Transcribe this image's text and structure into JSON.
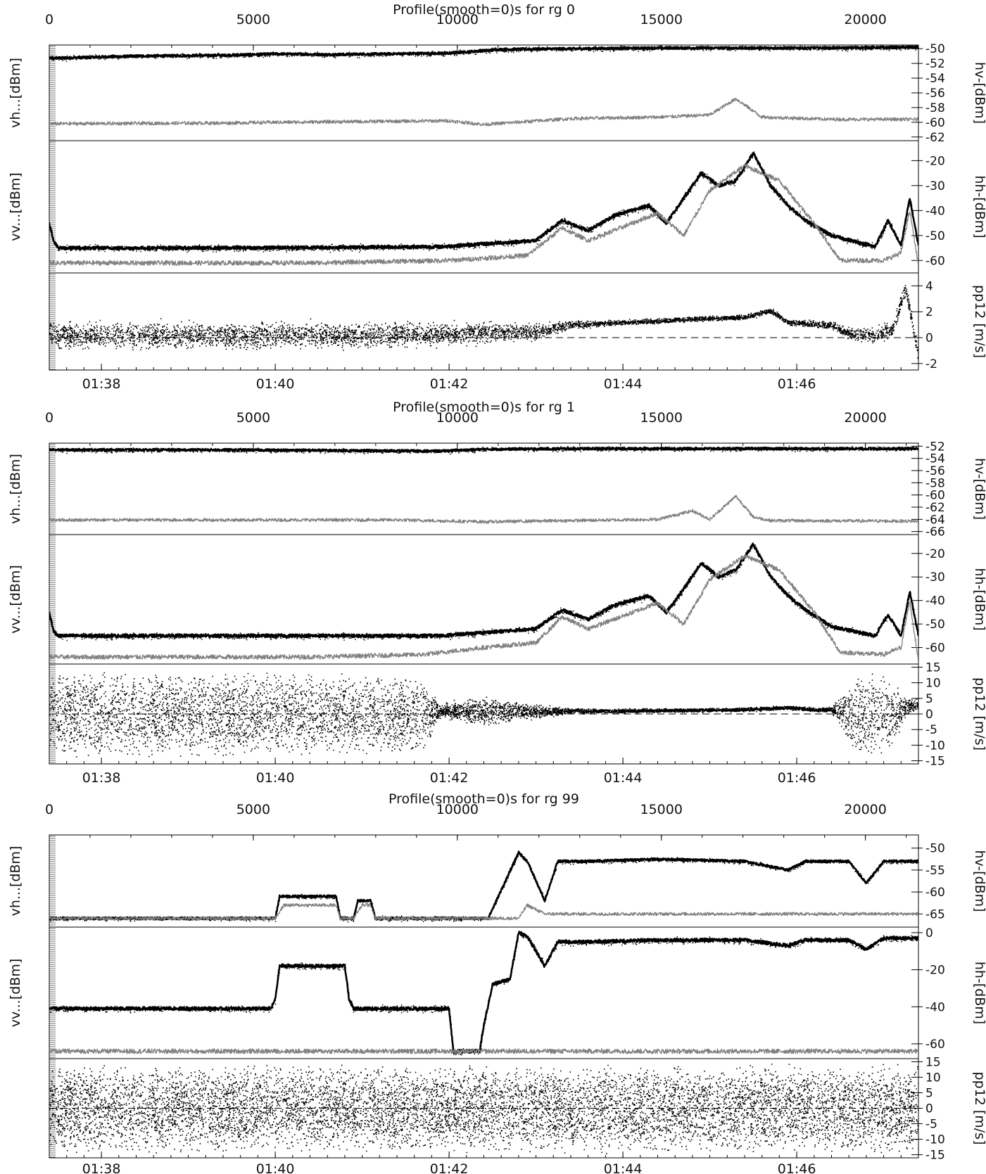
{
  "chart_data": [
    {
      "type": "line",
      "title": "Profile(smooth=0)s for rg 0",
      "top_axis": {
        "range": [
          0,
          21300
        ],
        "ticks": [
          0,
          5000,
          10000,
          15000,
          20000
        ],
        "labels": [
          "0",
          "5000",
          "10000",
          "15000",
          "20000"
        ]
      },
      "bottom_axis": {
        "ticks": [
          0.6,
          2.6,
          4.6,
          6.6,
          8.6
        ],
        "labels": [
          "01:38",
          "01:40",
          "01:42",
          "01:44",
          "01:46"
        ],
        "xlim": [
          0,
          10.0
        ]
      },
      "panels": [
        {
          "left_label": "vh...[dBm]",
          "right_label": "hv-[dBm]",
          "ylim": [
            -62.5,
            -49.5
          ],
          "ticks": [
            -50,
            -52,
            -54,
            -56,
            -58,
            -60,
            -62
          ],
          "tick_labels": [
            "-50",
            "-52",
            "-54",
            "-56",
            "-58",
            "-60",
            "-62"
          ],
          "series": [
            {
              "color": "#000000",
              "style": "band",
              "x": [
                0,
                1,
                2,
                2.6,
                3.2,
                4.6,
                5.2,
                6,
                7,
                8,
                9,
                10
              ],
              "values": [
                -51.3,
                -51.0,
                -50.9,
                -50.7,
                -50.8,
                -50.6,
                -50.1,
                -50.0,
                -49.9,
                -49.9,
                -49.9,
                -49.8
              ]
            },
            {
              "color": "#808080",
              "style": "line",
              "x": [
                0,
                2,
                2.6,
                4.6,
                5.0,
                6,
                7,
                7.6,
                7.9,
                8.2,
                9,
                10
              ],
              "values": [
                -60.2,
                -60.1,
                -60.0,
                -59.8,
                -60.3,
                -59.5,
                -59.3,
                -59.0,
                -56.8,
                -59.3,
                -59.6,
                -59.6
              ]
            }
          ]
        },
        {
          "left_label": "vv...[dBm]",
          "right_label": "hh-[dBm]",
          "ylim": [
            -65,
            -12
          ],
          "ticks": [
            -20,
            -30,
            -40,
            -50,
            -60
          ],
          "tick_labels": [
            "-20",
            "-30",
            "-40",
            "-50",
            "-60"
          ],
          "series": [
            {
              "color": "#000000",
              "style": "band",
              "x": [
                0,
                0.05,
                0.1,
                2,
                4.5,
                5.6,
                5.9,
                6.2,
                6.5,
                6.9,
                7.1,
                7.3,
                7.5,
                7.7,
                7.9,
                8.1,
                8.3,
                8.5,
                8.7,
                9.0,
                9.5,
                9.65,
                9.8,
                9.9,
                10
              ],
              "values": [
                -45,
                -52,
                -55,
                -55,
                -54.5,
                -52,
                -44,
                -48,
                -42,
                -38,
                -45,
                -35,
                -25,
                -30,
                -28,
                -17,
                -30,
                -38,
                -44,
                -50,
                -54.5,
                -44,
                -54,
                -35,
                -54
              ]
            },
            {
              "color": "#808080",
              "style": "line",
              "x": [
                0,
                3,
                4.6,
                5.5,
                5.9,
                6.2,
                6.5,
                7.0,
                7.3,
                7.6,
                8.0,
                8.4,
                8.8,
                9.1,
                9.6,
                9.8,
                9.9,
                10
              ],
              "values": [
                -61,
                -61,
                -60,
                -58,
                -47,
                -52,
                -48,
                -41,
                -50,
                -32,
                -22,
                -28,
                -45,
                -60,
                -60,
                -57,
                -40,
                -62
              ]
            }
          ]
        },
        {
          "left_label": "",
          "right_label": "pp12 [m/s]",
          "ylim": [
            -2.5,
            5
          ],
          "ticks": [
            4,
            2,
            0,
            -2
          ],
          "tick_labels": [
            "4",
            "2",
            "0",
            "-2"
          ],
          "dashed_zero": true,
          "series": [
            {
              "color": "#000000",
              "style": "scatter",
              "x": [
                0,
                2,
                4.5,
                5.6,
                6.0,
                6.6,
                7.0,
                7.5,
                8.0,
                8.3,
                8.5,
                9.0,
                9.2,
                9.5,
                9.7,
                9.85,
                10
              ],
              "values": [
                0.2,
                0.2,
                0.3,
                0.5,
                1.0,
                1.2,
                1.3,
                1.5,
                1.6,
                2.1,
                1.2,
                1.0,
                0.3,
                0.2,
                0.7,
                3.8,
                -1.5
              ],
              "spread": [
                1.0,
                1.0,
                0.9,
                0.6,
                0.3,
                0.2,
                0.2,
                0.2,
                0.2,
                0.2,
                0.2,
                0.3,
                0.5,
                0.6,
                0.6,
                0.5,
                0.6
              ]
            }
          ]
        }
      ]
    },
    {
      "type": "line",
      "title": "Profile(smooth=0)s for rg 1",
      "top_axis": {
        "range": [
          0,
          21300
        ],
        "ticks": [
          0,
          5000,
          10000,
          15000,
          20000
        ],
        "labels": [
          "0",
          "5000",
          "10000",
          "15000",
          "20000"
        ]
      },
      "bottom_axis": {
        "ticks": [
          0.6,
          2.6,
          4.6,
          6.6,
          8.6
        ],
        "labels": [
          "01:38",
          "01:40",
          "01:42",
          "01:44",
          "01:46"
        ],
        "xlim": [
          0,
          10.0
        ]
      },
      "panels": [
        {
          "left_label": "vh...[dBm]",
          "right_label": "hv-[dBm]",
          "ylim": [
            -66.5,
            -51.5
          ],
          "ticks": [
            -52,
            -54,
            -56,
            -58,
            -60,
            -62,
            -64,
            -66
          ],
          "tick_labels": [
            "-52",
            "-54",
            "-56",
            "-58",
            "-60",
            "-62",
            "-64",
            "-66"
          ],
          "series": [
            {
              "color": "#000000",
              "style": "band",
              "x": [
                0,
                2,
                4.5,
                5.0,
                6,
                8,
                10
              ],
              "values": [
                -52.6,
                -52.6,
                -52.8,
                -52.5,
                -52.4,
                -52.4,
                -52.4
              ]
            },
            {
              "color": "#808080",
              "style": "line",
              "x": [
                0,
                4,
                5.0,
                7.0,
                7.4,
                7.6,
                7.9,
                8.1,
                8.3,
                10
              ],
              "values": [
                -64.1,
                -64.1,
                -64.4,
                -64.0,
                -62.6,
                -64.0,
                -60.2,
                -63.6,
                -64.2,
                -64.3
              ]
            }
          ]
        },
        {
          "left_label": "vv...[dBm]",
          "right_label": "hh-[dBm]",
          "ylim": [
            -67,
            -12
          ],
          "ticks": [
            -20,
            -30,
            -40,
            -50,
            -60
          ],
          "tick_labels": [
            "-20",
            "-30",
            "-40",
            "-50",
            "-60"
          ],
          "series": [
            {
              "color": "#000000",
              "style": "band",
              "x": [
                0,
                0.05,
                0.1,
                2,
                4.5,
                5.6,
                5.9,
                6.2,
                6.5,
                6.9,
                7.1,
                7.3,
                7.5,
                7.7,
                7.9,
                8.1,
                8.3,
                8.5,
                8.7,
                9.0,
                9.5,
                9.65,
                9.8,
                9.9,
                10
              ],
              "values": [
                -45,
                -53,
                -55,
                -55,
                -55,
                -52,
                -44,
                -48,
                -42,
                -38,
                -45,
                -35,
                -24,
                -30,
                -27,
                -16,
                -30,
                -38,
                -44,
                -51,
                -55,
                -46,
                -55,
                -36,
                -55
              ]
            },
            {
              "color": "#808080",
              "style": "line",
              "x": [
                0,
                3,
                4.3,
                5.0,
                5.6,
                5.9,
                6.2,
                6.5,
                7.0,
                7.3,
                7.6,
                8.0,
                8.4,
                8.8,
                9.1,
                9.6,
                9.8,
                9.9,
                10
              ],
              "values": [
                -64,
                -64,
                -63,
                -60,
                -58,
                -47,
                -52,
                -48,
                -41,
                -50,
                -31,
                -21,
                -27,
                -45,
                -62,
                -63,
                -60,
                -40,
                -66
              ]
            }
          ]
        },
        {
          "left_label": "",
          "right_label": "pp12 [m/s]",
          "ylim": [
            -16,
            16
          ],
          "ticks": [
            15,
            10,
            5,
            0,
            -5,
            -10,
            -15
          ],
          "tick_labels": [
            "15",
            "10",
            "5",
            "0",
            "-5",
            "-10",
            "-15"
          ],
          "dashed_zero": true,
          "series": [
            {
              "color": "#000000",
              "style": "scatter",
              "x": [
                0,
                2,
                4.3,
                4.5,
                5.0,
                5.6,
                6.0,
                7.0,
                8.0,
                8.5,
                8.8,
                9.0,
                9.3,
                9.5,
                9.7,
                9.9,
                10
              ],
              "values": [
                0,
                0,
                0,
                1,
                1,
                1,
                1,
                1.2,
                1.5,
                2.2,
                1.5,
                1.5,
                0,
                0,
                0,
                3,
                3
              ],
              "spread": [
                14,
                14,
                13,
                2,
                5,
                2,
                0.8,
                0.6,
                0.6,
                0.6,
                0.6,
                0.8,
                14,
                14,
                10,
                2,
                2
              ]
            }
          ]
        }
      ]
    },
    {
      "type": "line",
      "title": "Profile(smooth=0)s for rg 99",
      "top_axis": {
        "range": [
          0,
          21300
        ],
        "ticks": [
          0,
          5000,
          10000,
          15000,
          20000
        ],
        "labels": [
          "0",
          "5000",
          "10000",
          "15000",
          "20000"
        ]
      },
      "bottom_axis": {
        "ticks": [
          0.6,
          2.6,
          4.6,
          6.6,
          8.6
        ],
        "labels": [
          "01:38",
          "01:40",
          "01:42",
          "01:44",
          "01:46"
        ],
        "xlim": [
          0,
          10.0
        ]
      },
      "panels": [
        {
          "left_label": "vh...[dBm]",
          "right_label": "hv-[dBm]",
          "ylim": [
            -68,
            -47
          ],
          "ticks": [
            -50,
            -55,
            -60,
            -65
          ],
          "tick_labels": [
            "-50",
            "-55",
            "-60",
            "-65"
          ],
          "series": [
            {
              "color": "#000000",
              "style": "band",
              "x": [
                0,
                2.6,
                2.65,
                3.3,
                3.35,
                3.5,
                3.55,
                3.7,
                3.75,
                4.6,
                4.62,
                5.0,
                5.05,
                5.4,
                5.5,
                5.7,
                5.85,
                6.2,
                7.0,
                8.0,
                8.5,
                8.7,
                9.2,
                9.4,
                9.6,
                10
              ],
              "values": [
                -66,
                -66,
                -61,
                -61,
                -66,
                -66,
                -62,
                -62,
                -66,
                -66,
                -66,
                -66,
                -66,
                -51,
                -53,
                -62,
                -53,
                -53,
                -52.5,
                -53,
                -55,
                -53,
                -53,
                -58,
                -53,
                -53
              ]
            },
            {
              "color": "#808080",
              "style": "line",
              "x": [
                0,
                2.6,
                2.7,
                3.3,
                3.35,
                3.5,
                3.6,
                3.7,
                3.75,
                5.4,
                5.5,
                5.6,
                5.7,
                6.0,
                10
              ],
              "values": [
                -66,
                -66,
                -63,
                -63,
                -66,
                -66,
                -63,
                -63,
                -66,
                -66,
                -63,
                -64,
                -65,
                -65,
                -65
              ]
            }
          ]
        },
        {
          "left_label": "vv...[dBm]",
          "right_label": "hh-[dBm]",
          "ylim": [
            -68,
            3
          ],
          "ticks": [
            0,
            -20,
            -40,
            -60
          ],
          "tick_labels": [
            "0",
            "-20",
            "-40",
            "-60"
          ],
          "series": [
            {
              "color": "#000000",
              "style": "band",
              "x": [
                0,
                2.55,
                2.6,
                2.65,
                3.4,
                3.45,
                3.5,
                4.6,
                4.65,
                4.95,
                5.0,
                5.1,
                5.3,
                5.4,
                5.5,
                5.7,
                5.85,
                6.2,
                7.0,
                8.0,
                8.5,
                8.7,
                9.2,
                9.4,
                9.6,
                10
              ],
              "values": [
                -41,
                -41,
                -36,
                -18,
                -18,
                -36,
                -41,
                -41,
                -64,
                -64,
                -50,
                -28,
                -25,
                0,
                -2,
                -18,
                -5,
                -5,
                -4,
                -4,
                -7,
                -4,
                -4,
                -9,
                -3,
                -3
              ]
            },
            {
              "color": "#808080",
              "style": "line",
              "x": [
                0,
                10
              ],
              "values": [
                -64,
                -64
              ]
            }
          ]
        },
        {
          "left_label": "",
          "right_label": "pp12 [m/s]",
          "ylim": [
            -16,
            16
          ],
          "ticks": [
            15,
            10,
            5,
            0,
            -5,
            -10,
            -15
          ],
          "tick_labels": [
            "15",
            "10",
            "5",
            "0",
            "-5",
            "-10",
            "-15"
          ],
          "dashed_zero": true,
          "series": [
            {
              "color": "#000000",
              "style": "scatter",
              "x": [
                0,
                10
              ],
              "values": [
                0,
                0
              ],
              "spread": [
                14.5,
                14.5
              ]
            }
          ]
        }
      ]
    }
  ]
}
